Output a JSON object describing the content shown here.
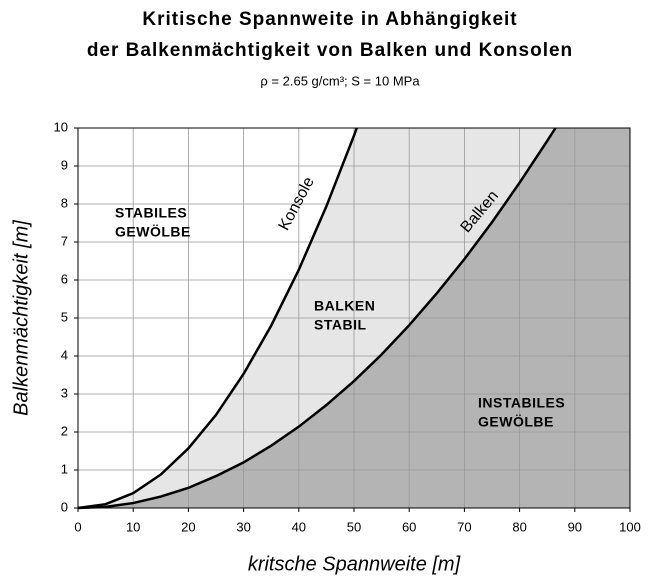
{
  "chart_data": {
    "type": "line",
    "title": [
      "Kritische Spannweite in Abhängigkeit",
      "der Balkenmächtigkeit von Balken und Konsolen"
    ],
    "subtitle": "ρ = 2.65 g/cm³;   S = 10 MPa",
    "xlabel": "kritsche Spannweite [m]",
    "ylabel": "Balkenmächtigkeit [m]",
    "xlim": [
      0,
      100
    ],
    "ylim": [
      0,
      10
    ],
    "xticks": [
      0,
      10,
      20,
      30,
      40,
      50,
      60,
      70,
      80,
      90,
      100
    ],
    "yticks": [
      0,
      1,
      2,
      3,
      4,
      5,
      6,
      7,
      8,
      9,
      10
    ],
    "grid": true,
    "series": [
      {
        "name": "Konsole",
        "color": "#000000",
        "fill": "#e6e6e6",
        "x": [
          0,
          5,
          10,
          15,
          20,
          25,
          30,
          35,
          40,
          45,
          50,
          50.5
        ],
        "values": [
          0,
          0.1,
          0.39,
          0.88,
          1.57,
          2.45,
          3.53,
          4.8,
          6.27,
          7.94,
          9.8,
          10
        ]
      },
      {
        "name": "Balken",
        "color": "#000000",
        "fill": "#b4b4b4",
        "x": [
          0,
          5,
          10,
          15,
          20,
          25,
          30,
          35,
          40,
          45,
          50,
          55,
          60,
          65,
          70,
          75,
          80,
          85,
          86.5
        ],
        "values": [
          0,
          0.03,
          0.13,
          0.3,
          0.53,
          0.84,
          1.2,
          1.64,
          2.14,
          2.71,
          3.34,
          4.04,
          4.81,
          5.65,
          6.55,
          7.52,
          8.56,
          9.66,
          10
        ]
      }
    ],
    "annotations": [
      {
        "lines": [
          "STABILES",
          "GEWÖLBE"
        ]
      },
      {
        "lines": [
          "BALKEN",
          "STABIL"
        ]
      },
      {
        "lines": [
          "INSTABILES",
          "GEWÖLBE"
        ]
      }
    ]
  }
}
